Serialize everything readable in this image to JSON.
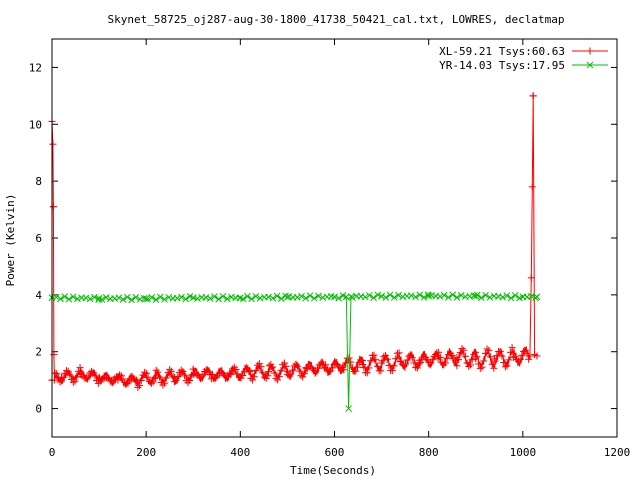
{
  "chart_data": {
    "type": "line",
    "title": "Skynet_58725_oj287-aug-30-1800_41738_50421_cal.txt, LOWRES, declatmap",
    "xlabel": "Time(Seconds)",
    "ylabel": "Power (Kelvin)",
    "xlim": [
      0,
      1200
    ],
    "ylim": [
      -1,
      13
    ],
    "x_ticks": [
      0,
      200,
      400,
      600,
      800,
      1000,
      1200
    ],
    "y_ticks": [
      0,
      2,
      4,
      6,
      8,
      10,
      12
    ],
    "x_tick_labels": [
      "0",
      "200",
      "400",
      "600",
      "800",
      "1000",
      "1200"
    ],
    "y_tick_labels": [
      "0",
      "2",
      "4",
      "6",
      "8",
      "10",
      "12"
    ],
    "grid": false,
    "legend_position": "top-right",
    "series": [
      {
        "name": "XL-59.21 Tsys:60.63",
        "color": "#ff0000",
        "marker": "plus",
        "points": [
          [
            0,
            1.0
          ],
          [
            0,
            10.1
          ],
          [
            2,
            9.3
          ],
          [
            3,
            7.1
          ],
          [
            4,
            1.9
          ],
          [
            5,
            1.0
          ],
          [
            20,
            1.1
          ],
          [
            60,
            1.2
          ],
          [
            100,
            1.1
          ],
          [
            140,
            1.0
          ],
          [
            180,
            1.0
          ],
          [
            220,
            1.1
          ],
          [
            260,
            1.1
          ],
          [
            300,
            1.2
          ],
          [
            340,
            1.2
          ],
          [
            380,
            1.2
          ],
          [
            420,
            1.3
          ],
          [
            460,
            1.3
          ],
          [
            500,
            1.3
          ],
          [
            540,
            1.4
          ],
          [
            580,
            1.45
          ],
          [
            620,
            1.5
          ],
          [
            660,
            1.55
          ],
          [
            700,
            1.6
          ],
          [
            740,
            1.65
          ],
          [
            780,
            1.7
          ],
          [
            820,
            1.75
          ],
          [
            860,
            1.8
          ],
          [
            900,
            1.75
          ],
          [
            940,
            1.75
          ],
          [
            980,
            1.8
          ],
          [
            1015,
            1.85
          ],
          [
            1018,
            4.6
          ],
          [
            1020,
            7.8
          ],
          [
            1022,
            11.0
          ],
          [
            1025,
            1.9
          ],
          [
            1030,
            1.85
          ]
        ],
        "oscillation_amplitude": 0.25
      },
      {
        "name": "YR-14.03 Tsys:17.95",
        "color": "#00c000",
        "marker": "cross",
        "points": [
          [
            0,
            3.9
          ],
          [
            100,
            3.88
          ],
          [
            200,
            3.87
          ],
          [
            300,
            3.9
          ],
          [
            400,
            3.9
          ],
          [
            500,
            3.92
          ],
          [
            600,
            3.93
          ],
          [
            625,
            3.93
          ],
          [
            630,
            0.0
          ],
          [
            635,
            3.94
          ],
          [
            700,
            3.95
          ],
          [
            800,
            3.96
          ],
          [
            900,
            3.95
          ],
          [
            1000,
            3.93
          ],
          [
            1030,
            3.93
          ]
        ]
      }
    ]
  }
}
